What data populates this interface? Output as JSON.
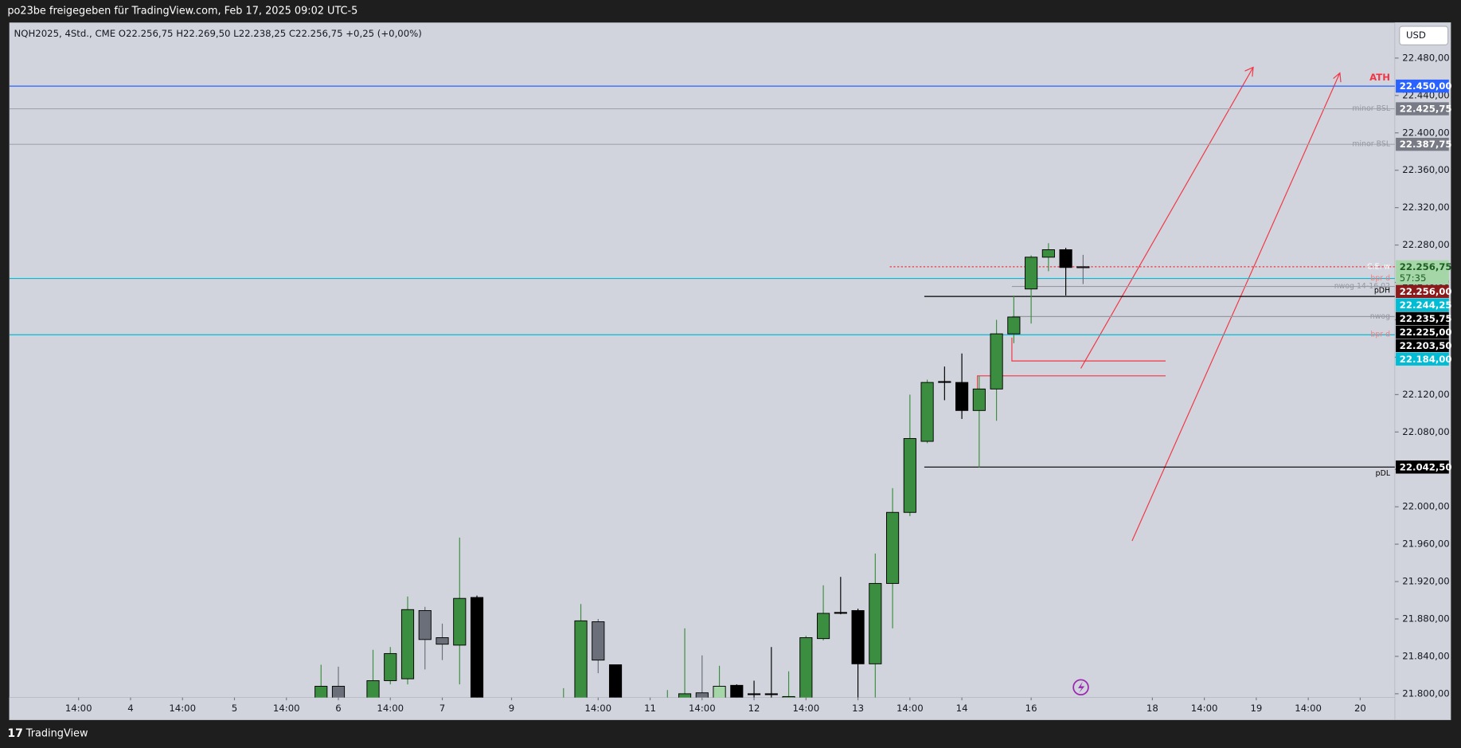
{
  "header": {
    "share": "po23be freigegeben für TradingView.com, Feb 17, 2025 09:02 UTC-5",
    "legend": "NQH2025, 4Std., CME  O22.256,75  H22.269,50  L22.238,25  C22.256,75  +0,25 (+0,00%)",
    "currency": "USD"
  },
  "footer": {
    "brand": "TradingView"
  },
  "chart_data": {
    "type": "candlestick",
    "xlim": [
      0,
      80
    ],
    "ylim": [
      21796,
      22518
    ],
    "x": [
      18,
      19,
      21,
      22,
      23,
      24,
      25,
      26,
      27,
      32,
      33,
      34,
      35,
      38,
      39,
      40,
      41,
      42,
      43,
      44,
      45,
      46,
      47,
      48,
      49,
      50,
      51,
      52,
      53,
      54,
      55,
      56,
      57,
      58,
      59,
      60,
      61,
      62
    ],
    "open": [
      21790,
      21808,
      21790,
      21814,
      21816,
      21889,
      21860,
      21852,
      21903,
      21790,
      21790,
      21877,
      21831,
      21790,
      21795,
      21801,
      21795,
      21809,
      21800,
      21800,
      21795,
      21790,
      21859,
      21886,
      21889,
      21832,
      21918,
      21994,
      22070,
      22134,
      22133,
      22103,
      22126,
      22185,
      22233,
      22267,
      22275,
      22256.75
    ],
    "high": [
      21831,
      21829,
      21847,
      21850,
      21904,
      21893,
      21875,
      21967,
      21905,
      21806,
      21896,
      21880,
      21831,
      21804,
      21870,
      21841,
      21830,
      21810,
      21814,
      21850,
      21824,
      21862,
      21916,
      21925,
      21891,
      21950,
      22020,
      22120,
      22136,
      22150,
      22164,
      22140,
      22200,
      22226,
      22269,
      22282,
      22277,
      22269.5
    ],
    "low": [
      21785,
      21785,
      21785,
      21810,
      21810,
      21826,
      21836,
      21810,
      21785,
      21785,
      21785,
      21822,
      21785,
      21785,
      21785,
      21785,
      21785,
      21785,
      21785,
      21785,
      21785,
      21785,
      21857,
      21885,
      21796,
      21796,
      21870,
      21990,
      22068,
      22114,
      22094,
      22042,
      22092,
      22175,
      22196,
      22252,
      22226,
      22238.25
    ],
    "close": [
      21808,
      21790,
      21814,
      21843,
      21890,
      21858,
      21853,
      21902,
      21790,
      21792,
      21878,
      21836,
      21790,
      21792,
      21800,
      21795,
      21808,
      21795,
      21800,
      21800,
      21797,
      21860,
      21886,
      21887,
      21832,
      21918,
      21994,
      22073,
      22133,
      22133,
      22103,
      22126,
      22185,
      22203,
      22267,
      22275,
      22256,
      22256.75
    ],
    "colors": [
      "#3b8e3f",
      "#6b6f7a",
      "#3b8e3f",
      "#3b8e3f",
      "#3b8e3f",
      "#6b6f7a",
      "#6b6f7a",
      "#3b8e3f",
      "#000000",
      "#3b8e3f",
      "#3b8e3f",
      "#6b6f7a",
      "#000000",
      "#3b8e3f",
      "#3b8e3f",
      "#6b6f7a",
      "#a5d6a7",
      "#000000",
      "#000000",
      "#000000",
      "#3b8e3f",
      "#3b8e3f",
      "#3b8e3f",
      "#000000",
      "#000000",
      "#3b8e3f",
      "#3b8e3f",
      "#3b8e3f",
      "#3b8e3f",
      "#000000",
      "#000000",
      "#3b8e3f",
      "#3b8e3f",
      "#3b8e3f",
      "#3b8e3f",
      "#3b8e3f",
      "#000000",
      "#6b6f7a"
    ],
    "yticks": [
      {
        "value": 21800,
        "label": "21.800,00"
      },
      {
        "value": 21840,
        "label": "21.840,00"
      },
      {
        "value": 21880,
        "label": "21.880,00"
      },
      {
        "value": 21920,
        "label": "21.920,00"
      },
      {
        "value": 21960,
        "label": "21.960,00"
      },
      {
        "value": 22000,
        "label": "22.000,00"
      },
      {
        "value": 22040,
        "label": "22.040,00"
      },
      {
        "value": 22080,
        "label": "22.080,00"
      },
      {
        "value": 22120,
        "label": "22.120,00"
      },
      {
        "value": 22160,
        "label": "22.160,00"
      },
      {
        "value": 22200,
        "label": "22.200,00"
      },
      {
        "value": 22240,
        "label": "22.240,00"
      },
      {
        "value": 22280,
        "label": "22.280,00"
      },
      {
        "value": 22320,
        "label": "22.320,00"
      },
      {
        "value": 22360,
        "label": "22.360,00"
      },
      {
        "value": 22400,
        "label": "22.400,00"
      },
      {
        "value": 22440,
        "label": "22.440,00"
      },
      {
        "value": 22480,
        "label": "22.480,00"
      }
    ],
    "xticks": [
      {
        "value": 4,
        "label": "14:00"
      },
      {
        "value": 7,
        "label": "4"
      },
      {
        "value": 10,
        "label": "14:00"
      },
      {
        "value": 13,
        "label": "5"
      },
      {
        "value": 16,
        "label": "14:00"
      },
      {
        "value": 19,
        "label": "6"
      },
      {
        "value": 22,
        "label": "14:00"
      },
      {
        "value": 25,
        "label": "7"
      },
      {
        "value": 29,
        "label": "9"
      },
      {
        "value": 34,
        "label": "14:00"
      },
      {
        "value": 37,
        "label": "11"
      },
      {
        "value": 40,
        "label": "14:00"
      },
      {
        "value": 43,
        "label": "12"
      },
      {
        "value": 46,
        "label": "14:00"
      },
      {
        "value": 49,
        "label": "13"
      },
      {
        "value": 52,
        "label": "14:00"
      },
      {
        "value": 55,
        "label": "14"
      },
      {
        "value": 59,
        "label": "16"
      },
      {
        "value": 66,
        "label": "18"
      },
      {
        "value": 69,
        "label": "14:00"
      },
      {
        "value": 72,
        "label": "19"
      },
      {
        "value": 75,
        "label": "14:00"
      },
      {
        "value": 78,
        "label": "20"
      }
    ],
    "levels": [
      {
        "name": "ATH",
        "value": 22450,
        "value_label": "22.450,00",
        "color": "#2962ff",
        "label_bg": "#2962ff",
        "name_color": "#f23645"
      },
      {
        "name": "minor BSL",
        "value": 22425.75,
        "value_label": "22.425,75",
        "color": "#a0a4ad",
        "label_bg": "#787b86",
        "name_color": "#9598a1"
      },
      {
        "name": "minor BSL",
        "value": 22387.75,
        "value_label": "22.387,75",
        "color": "#a0a4ad",
        "label_bg": "#787b86",
        "name_color": "#9598a1"
      },
      {
        "name": "C.E. w",
        "value": 22256.75,
        "value_label": "22.256,75",
        "countdown": "57:35",
        "color": "#f23645",
        "label_bg": "#a5d6a7",
        "name_color": "#ffffff"
      },
      {
        "name": "bpr d",
        "value": 22244.25,
        "value_label": "22.244,25",
        "color": "#00bcd4",
        "label_bg": "#00bcd4",
        "name_color": "#f77c80"
      },
      {
        "value": 22256,
        "value_label": "22.256,00",
        "label_bg": "#8b1a1a"
      },
      {
        "name": "nwog 14-16.02",
        "value": 22235.75,
        "value_label": "22.235,75",
        "color": "#9598a1",
        "label_bg": "#000000",
        "name_color": "#9598a1"
      },
      {
        "name": "pDH",
        "value": 22225,
        "value_label": "22.225,00",
        "color": "#000000",
        "label_bg": "#000000",
        "name_color": "#000000"
      },
      {
        "name": "nwog",
        "value": 22203.5,
        "value_label": "22.203,50",
        "color": "#9598a1",
        "label_bg": "#000000",
        "name_color": "#9598a1"
      },
      {
        "name": "bpr d",
        "value": 22184,
        "value_label": "22.184,00",
        "color": "#00bcd4",
        "label_bg": "#00bcd4",
        "name_color": "#f77c80"
      },
      {
        "name": "pDL",
        "value": 22042.5,
        "value_label": "22.042,50",
        "color": "#000000",
        "label_bg": "#000000",
        "name_color": "#000000"
      }
    ]
  }
}
